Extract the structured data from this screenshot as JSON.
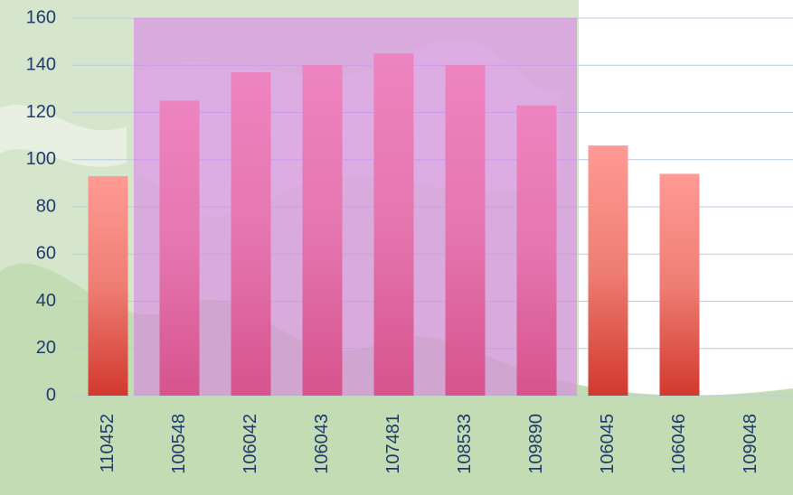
{
  "chart_data": {
    "type": "bar",
    "categories": [
      "110452",
      "100548",
      "106042",
      "106043",
      "107481",
      "108533",
      "109890",
      "106045",
      "106046",
      "109048"
    ],
    "values": [
      93,
      125,
      137,
      140,
      145,
      140,
      123,
      106,
      94,
      0
    ],
    "color": "#ff9a94",
    "ylim": [
      0,
      160
    ],
    "yticks": [
      0,
      20,
      40,
      60,
      80,
      100,
      120,
      140,
      160
    ],
    "grid": true
  }
}
